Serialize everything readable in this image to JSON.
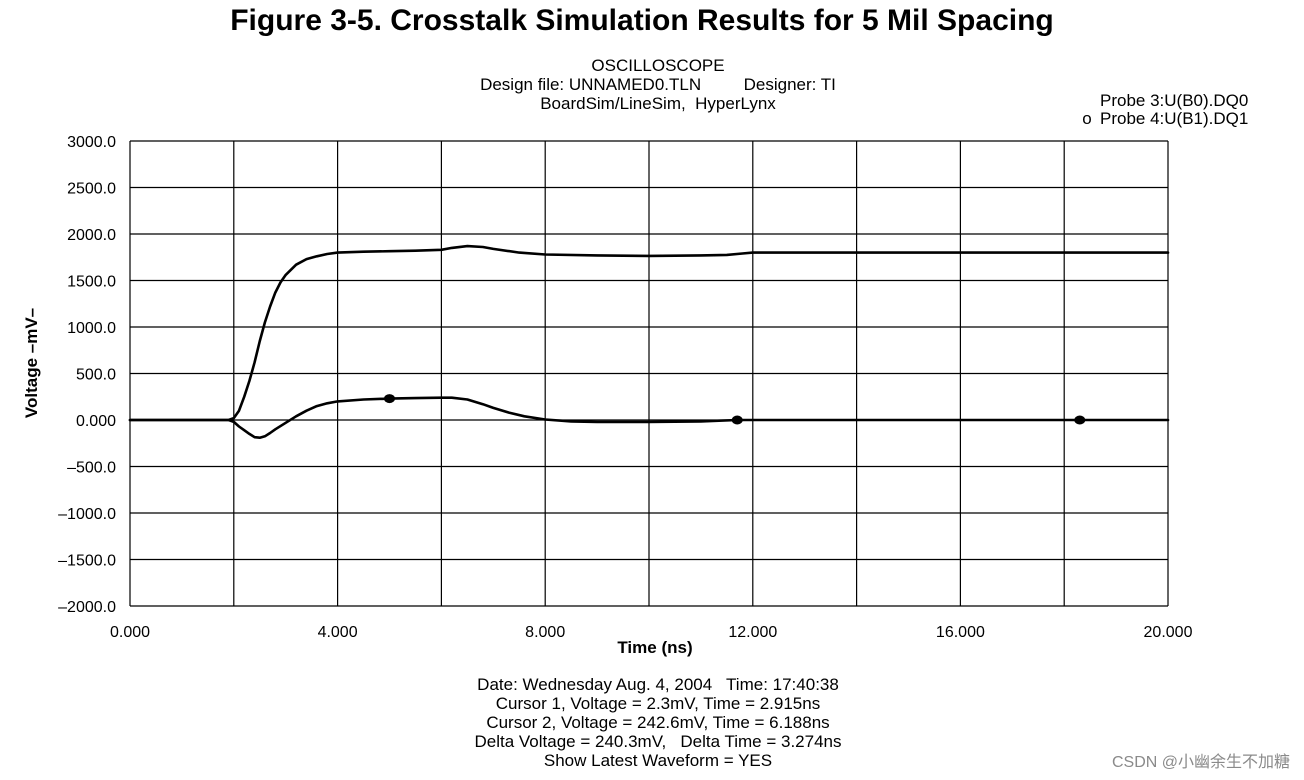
{
  "figure_title": "Figure 3-5. Crosstalk Simulation Results for 5 Mil Spacing",
  "header": {
    "line1": "OSCILLOSCOPE",
    "line2": "Design file: UNNAMED0.TLN         Designer: TI",
    "line3": "BoardSim/LineSim,  HyperLynx"
  },
  "footer": {
    "date_line": "Date: Wednesday Aug. 4, 2004   Time: 17:40:38",
    "cursor1": "Cursor 1, Voltage = 2.3mV, Time = 2.915ns",
    "cursor2": "Cursor 2, Voltage = 242.6mV, Time = 6.188ns",
    "delta": "Delta Voltage = 240.3mV,   Delta Time = 3.274ns",
    "latest": "Show Latest Waveform = YES"
  },
  "watermark": "CSDN @小幽余生不加糖",
  "colors": {
    "trace": "#000000",
    "grid": "#000000"
  },
  "chart_data": {
    "type": "line",
    "title": "OSCILLOSCOPE",
    "xlabel": "Time  (ns)",
    "ylabel": "Voltage  –mV–",
    "xlim": [
      0,
      20
    ],
    "ylim": [
      -2000,
      3000
    ],
    "x_ticks": [
      0,
      2,
      4,
      6,
      8,
      10,
      12,
      14,
      16,
      18,
      20
    ],
    "x_tick_labels": [
      "0.000",
      "4.000",
      "8.000",
      "12.000",
      "16.000",
      "20.000"
    ],
    "x_tick_label_values": [
      0,
      4,
      8,
      12,
      16,
      20
    ],
    "y_ticks": [
      3000,
      2500,
      2000,
      1500,
      1000,
      500,
      0,
      -500,
      -1000,
      -1500,
      -2000
    ],
    "y_tick_labels": [
      "3000.0",
      "2500.0",
      "2000.0",
      "1500.0",
      "1000.0",
      "500.0",
      "0.000",
      "–500.0",
      "–1000.0",
      "–1500.0",
      "–2000.0"
    ],
    "grid": true,
    "legend_position": "top-right",
    "series": [
      {
        "name": "Probe 3:U(B0).DQ0",
        "marker": "",
        "x": [
          0,
          1.9,
          2.0,
          2.1,
          2.2,
          2.3,
          2.4,
          2.5,
          2.6,
          2.7,
          2.8,
          2.9,
          3.0,
          3.2,
          3.4,
          3.6,
          3.8,
          4.0,
          4.5,
          5.0,
          5.5,
          6.0,
          6.2,
          6.5,
          6.8,
          7.0,
          7.5,
          8.0,
          9.0,
          10.0,
          11.0,
          11.5,
          11.8,
          12.0,
          14.0,
          16.0,
          18.0,
          20.0
        ],
        "y": [
          0,
          0,
          20,
          100,
          250,
          420,
          620,
          850,
          1050,
          1220,
          1370,
          1480,
          1560,
          1670,
          1730,
          1760,
          1785,
          1800,
          1810,
          1815,
          1820,
          1830,
          1850,
          1870,
          1860,
          1840,
          1800,
          1780,
          1770,
          1765,
          1770,
          1775,
          1790,
          1800,
          1800,
          1800,
          1800,
          1800
        ]
      },
      {
        "name": "Probe 4:U(B1).DQ1",
        "marker": "o",
        "marker_x": [
          5.0,
          11.7,
          18.3
        ],
        "x": [
          0,
          1.9,
          2.0,
          2.1,
          2.2,
          2.3,
          2.4,
          2.5,
          2.6,
          2.7,
          2.8,
          3.0,
          3.2,
          3.4,
          3.6,
          3.8,
          4.0,
          4.5,
          5.0,
          5.5,
          6.0,
          6.2,
          6.5,
          6.8,
          7.0,
          7.3,
          7.6,
          8.0,
          8.5,
          9.0,
          10.0,
          11.0,
          11.7,
          12.0,
          14.0,
          16.0,
          18.0,
          18.3,
          20.0
        ],
        "y": [
          0,
          0,
          -20,
          -70,
          -110,
          -150,
          -185,
          -190,
          -175,
          -140,
          -100,
          -30,
          40,
          100,
          150,
          180,
          200,
          220,
          230,
          235,
          240,
          240,
          220,
          170,
          130,
          80,
          40,
          5,
          -15,
          -20,
          -20,
          -15,
          0,
          0,
          0,
          0,
          0,
          0,
          0
        ]
      }
    ]
  }
}
